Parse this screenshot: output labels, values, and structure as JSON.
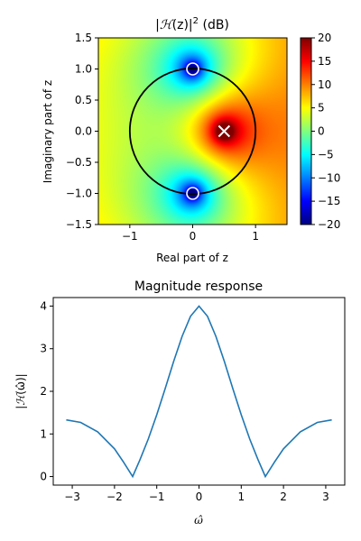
{
  "chart_data": [
    {
      "type": "heatmap",
      "title_pre": "|",
      "title_script": "ℋ",
      "title_mid": "(z)|",
      "title_sup": "2",
      "title_post": " (dB)",
      "xlabel": "Real part of z",
      "ylabel": "Imaginary part of z",
      "xlim": [
        -1.5,
        1.5
      ],
      "ylim": [
        -1.5,
        1.5
      ],
      "xticks": [
        -1,
        0,
        1
      ],
      "xtick_labels": [
        "−1",
        "0",
        "1"
      ],
      "yticks": [
        1.5,
        1.0,
        0.5,
        0.0,
        -0.5,
        -1.0,
        -1.5
      ],
      "ytick_labels": [
        "1.5",
        "1.0",
        "0.5",
        "0.0",
        "−0.5",
        "−1.0",
        "−1.5"
      ],
      "colormap": "jet",
      "color_range_db": [
        -20,
        20
      ],
      "colorbar_ticks": [
        20,
        15,
        10,
        5,
        0,
        -5,
        -10,
        -15,
        -20
      ],
      "colorbar_tick_labels": [
        "20",
        "15",
        "10",
        "5",
        "0",
        "−5",
        "−10",
        "−15",
        "−20"
      ],
      "unit_circle": {
        "center": [
          0,
          0
        ],
        "radius": 1
      },
      "zeros": [
        [
          0,
          1
        ],
        [
          0,
          -1
        ]
      ],
      "poles": [
        [
          0.5,
          0
        ]
      ]
    },
    {
      "type": "line",
      "title": "Magnitude response",
      "xlabel": "ω̂",
      "ylabel_pre": "|",
      "ylabel_script": "ℋ",
      "ylabel_mid": "(ω̂)|",
      "xlim": [
        -3.45,
        3.45
      ],
      "ylim": [
        -0.2,
        4.2
      ],
      "xticks": [
        -3,
        -2,
        -1,
        0,
        1,
        2,
        3
      ],
      "xtick_labels": [
        "−3",
        "−2",
        "−1",
        "0",
        "1",
        "2",
        "3"
      ],
      "yticks": [
        0,
        1,
        2,
        3,
        4
      ],
      "ytick_labels": [
        "0",
        "1",
        "2",
        "3",
        "4"
      ],
      "line_color": "#1f77b4",
      "series": [
        {
          "x": [
            -3.14159,
            -2.8,
            -2.4,
            -2.0,
            -1.8,
            -1.5708,
            -1.4,
            -1.2,
            -1.0,
            -0.8,
            -0.6,
            -0.4,
            -0.2,
            0,
            0.2,
            0.4,
            0.6,
            0.8,
            1.0,
            1.2,
            1.4,
            1.5708,
            1.8,
            2.0,
            2.4,
            2.8,
            3.14159
          ],
          "y": [
            1.33,
            1.27,
            1.05,
            0.65,
            0.36,
            0.0,
            0.39,
            0.88,
            1.45,
            2.07,
            2.7,
            3.29,
            3.76,
            4.0,
            3.76,
            3.29,
            2.7,
            2.07,
            1.45,
            0.88,
            0.39,
            0.0,
            0.36,
            0.65,
            1.05,
            1.27,
            1.33
          ]
        }
      ]
    }
  ]
}
